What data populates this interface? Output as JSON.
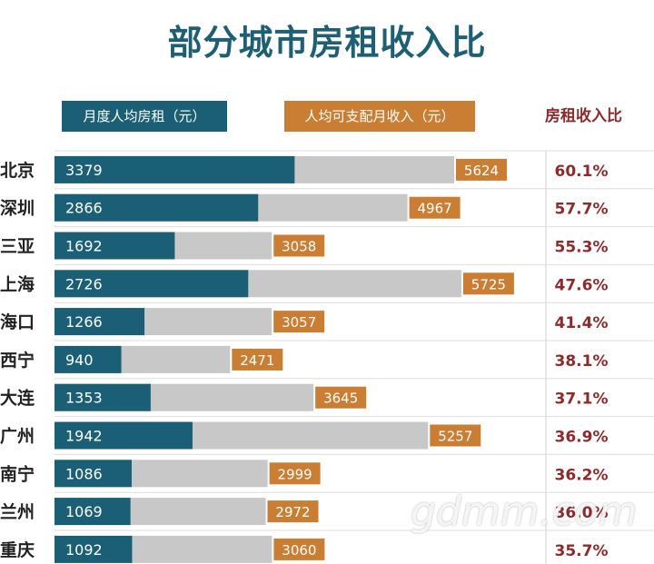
{
  "chart_data": {
    "type": "bar",
    "title": "部分城市房租收入比",
    "legend": {
      "rent": "月度人均房租（元）",
      "income": "人均可支配月收入（元）",
      "ratio": "房租收入比"
    },
    "categories": [
      "北京",
      "深圳",
      "三亚",
      "上海",
      "海口",
      "西宁",
      "大连",
      "广州",
      "南宁",
      "兰州",
      "重庆"
    ],
    "series": [
      {
        "name": "月度人均房租（元）",
        "values": [
          3379,
          2866,
          1692,
          2726,
          1266,
          940,
          1353,
          1942,
          1086,
          1069,
          1092
        ]
      },
      {
        "name": "人均可支配月收入（元）",
        "values": [
          5624,
          4967,
          3058,
          5725,
          3057,
          2471,
          3645,
          5257,
          2999,
          2972,
          3060
        ]
      },
      {
        "name": "房租收入比",
        "values": [
          "60.1%",
          "57.7%",
          "55.3%",
          "47.6%",
          "41.4%",
          "38.1%",
          "37.1%",
          "36.9%",
          "36.2%",
          "36.0%",
          "35.7%"
        ]
      }
    ],
    "colors": {
      "rent": "#1b5f76",
      "income_bar": "#c8c8c8",
      "income_label": "#c97e33",
      "ratio_text": "#8b2b2b",
      "title": "#1f5f73"
    }
  },
  "watermark": "gdmm.com"
}
